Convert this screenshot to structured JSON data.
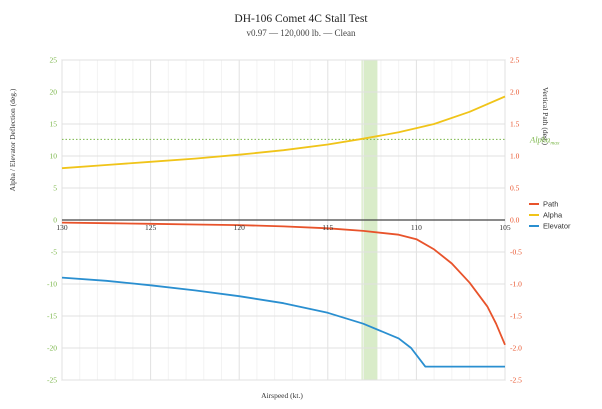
{
  "chart_data": {
    "type": "line",
    "title": "DH-106 Comet 4C Stall Test",
    "subtitle": "v0.97 — 120,000 lb. — Clean",
    "xlabel": "Airspeed (kt.)",
    "ylabel_left": "Alpha / Elevator Deflection (deg.)",
    "ylabel_right": "Vertical Path (deg.)",
    "x_range": [
      130,
      105
    ],
    "x_ticks": [
      130,
      125,
      120,
      115,
      110,
      105
    ],
    "y_left_range": [
      -25,
      25
    ],
    "y_left_ticks": [
      25,
      20,
      15,
      10,
      5,
      0,
      -5,
      -10,
      -15,
      -20,
      -25
    ],
    "y_right_range": [
      -2.5,
      2.5
    ],
    "y_right_ticks": [
      "2.5",
      "2.0",
      "1.5",
      "1.0",
      "0.5",
      "0.0",
      "-0.5",
      "-1.0",
      "-1.5",
      "-2.0",
      "-2.5"
    ],
    "grid": true,
    "legend_position": "right",
    "highlight_band": {
      "from": 113.1,
      "to": 112.2,
      "color": "#d9ecc9"
    },
    "alpha_max": {
      "value": 12.6,
      "label_main": "Alpha",
      "label_sub": "max",
      "color": "#7ab648"
    },
    "series": [
      {
        "name": "Path",
        "axis": "right",
        "color": "#e8532b",
        "x": [
          130,
          127.5,
          125,
          122.5,
          120,
          117.5,
          115,
          113,
          111,
          110,
          109,
          108,
          107,
          106,
          105.5,
          105
        ],
        "y": [
          -0.04,
          -0.05,
          -0.06,
          -0.07,
          -0.08,
          -0.1,
          -0.13,
          -0.17,
          -0.23,
          -0.3,
          -0.46,
          -0.68,
          -0.98,
          -1.35,
          -1.62,
          -1.95
        ]
      },
      {
        "name": "Alpha",
        "axis": "left",
        "color": "#f0c419",
        "x": [
          130,
          127.5,
          125,
          122.5,
          120,
          117.5,
          115,
          113,
          111,
          109,
          107,
          105
        ],
        "y": [
          8.1,
          8.6,
          9.1,
          9.6,
          10.2,
          10.9,
          11.8,
          12.7,
          13.7,
          15.0,
          16.9,
          19.3
        ]
      },
      {
        "name": "Elevator",
        "axis": "left",
        "color": "#2a8fd0",
        "x": [
          130,
          127.5,
          125,
          122.5,
          120,
          117.5,
          115,
          113,
          111,
          110.3,
          109.5,
          107,
          105
        ],
        "y": [
          -9.0,
          -9.5,
          -10.2,
          -11.0,
          -11.9,
          -13.0,
          -14.5,
          -16.2,
          -18.5,
          -20.0,
          -22.9,
          -22.9,
          -22.9
        ]
      }
    ]
  }
}
